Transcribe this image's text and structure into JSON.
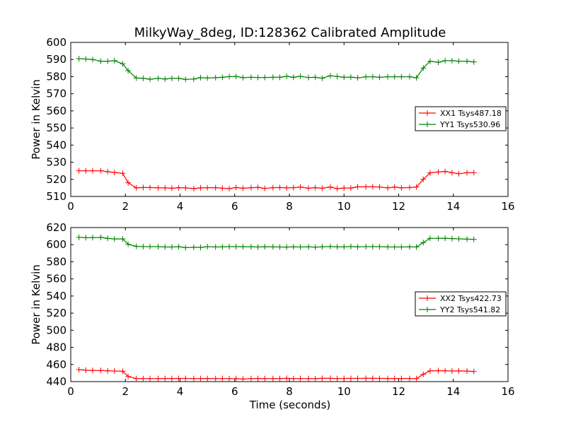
{
  "figure": {
    "title": "MilkyWay_8deg, ID:128362 Calibrated Amplitude",
    "xlabel": "Time (seconds)"
  },
  "colors": {
    "red": "#ff0000",
    "green": "#008000"
  },
  "chart_data": [
    {
      "type": "line",
      "ylabel": "Power in Kelvin",
      "xlim": [
        0,
        16
      ],
      "ylim": [
        510,
        600
      ],
      "xticks": [
        0,
        2,
        4,
        6,
        8,
        10,
        12,
        14,
        16
      ],
      "yticks": [
        510,
        520,
        530,
        540,
        550,
        560,
        570,
        580,
        590,
        600
      ],
      "grid": false,
      "legend": "center-right",
      "x": [
        0.3,
        0.55,
        0.8,
        1.1,
        1.35,
        1.6,
        1.9,
        2.1,
        2.4,
        2.65,
        2.9,
        3.2,
        3.45,
        3.7,
        3.95,
        4.2,
        4.5,
        4.75,
        5.0,
        5.3,
        5.55,
        5.8,
        6.05,
        6.3,
        6.6,
        6.85,
        7.1,
        7.4,
        7.65,
        7.9,
        8.15,
        8.4,
        8.7,
        8.95,
        9.2,
        9.5,
        9.75,
        10.0,
        10.25,
        10.5,
        10.8,
        11.05,
        11.3,
        11.6,
        11.85,
        12.1,
        12.4,
        12.65,
        12.9,
        13.15,
        13.45,
        13.7,
        13.95,
        14.2,
        14.5,
        14.75
      ],
      "series": [
        {
          "name": "XX1 Tsys487.18",
          "color": "red",
          "values": [
            525,
            525,
            525,
            525,
            524.5,
            524,
            523.5,
            518,
            515,
            515.2,
            515.2,
            515,
            515,
            514.8,
            515.1,
            515,
            514.6,
            515,
            515.1,
            515.1,
            514.8,
            514.6,
            515.2,
            514.8,
            515.1,
            515.3,
            514.7,
            515.1,
            515.2,
            515,
            515.1,
            515.5,
            514.8,
            515.1,
            514.8,
            515.5,
            514.6,
            514.9,
            514.9,
            515.6,
            515.6,
            515.6,
            515.5,
            515,
            515.5,
            515,
            515.2,
            515.5,
            520,
            523.8,
            524.3,
            524.6,
            523.9,
            523.3,
            523.9,
            523.9
          ]
        },
        {
          "name": "YY1 Tsys530.96",
          "color": "green",
          "values": [
            590.5,
            590.3,
            590,
            589,
            589,
            589.3,
            587.5,
            583.5,
            579.2,
            579,
            578.5,
            579,
            578.6,
            579,
            579,
            578.4,
            578.6,
            579.4,
            579.2,
            579.4,
            579.6,
            580,
            580.1,
            579.4,
            579.6,
            579.5,
            579.5,
            579.6,
            579.6,
            580.2,
            579.6,
            580.2,
            579.5,
            579.6,
            579.1,
            580.5,
            580.1,
            579.6,
            579.7,
            579.3,
            579.9,
            579.9,
            579.6,
            579.9,
            579.9,
            579.9,
            579.9,
            579.3,
            585,
            589,
            588.4,
            589.3,
            589.3,
            589,
            589,
            588.6
          ]
        }
      ]
    },
    {
      "type": "line",
      "ylabel": "Power in Kelvin",
      "xlim": [
        0,
        16
      ],
      "ylim": [
        440,
        620
      ],
      "xticks": [
        0,
        2,
        4,
        6,
        8,
        10,
        12,
        14,
        16
      ],
      "yticks": [
        440,
        460,
        480,
        500,
        520,
        540,
        560,
        580,
        600,
        620
      ],
      "grid": false,
      "legend": "center-right",
      "x": [
        0.3,
        0.55,
        0.8,
        1.1,
        1.35,
        1.6,
        1.9,
        2.1,
        2.4,
        2.65,
        2.9,
        3.2,
        3.45,
        3.7,
        3.95,
        4.2,
        4.5,
        4.75,
        5.0,
        5.3,
        5.55,
        5.8,
        6.05,
        6.3,
        6.6,
        6.85,
        7.1,
        7.4,
        7.65,
        7.9,
        8.15,
        8.4,
        8.7,
        8.95,
        9.2,
        9.5,
        9.75,
        10.0,
        10.25,
        10.5,
        10.8,
        11.05,
        11.3,
        11.6,
        11.85,
        12.1,
        12.4,
        12.65,
        12.9,
        13.15,
        13.45,
        13.7,
        13.95,
        14.2,
        14.5,
        14.75
      ],
      "series": [
        {
          "name": "XX2 Tsys422.73",
          "color": "red",
          "values": [
            454,
            453.3,
            453,
            453,
            452.6,
            452.4,
            452.1,
            446,
            443.5,
            443.5,
            443.5,
            443.5,
            443.6,
            443.6,
            443.6,
            443.7,
            443.5,
            443.5,
            443.6,
            443.5,
            443.5,
            443.5,
            443.5,
            443,
            443.5,
            443.6,
            443.5,
            443.5,
            443.5,
            443.8,
            443.5,
            443.5,
            443.5,
            443.4,
            443.8,
            443.8,
            443.5,
            443.7,
            443.7,
            443.7,
            443.8,
            443.8,
            443.7,
            443.6,
            443.6,
            443.6,
            443.6,
            443.5,
            448.5,
            452.5,
            452.8,
            452.6,
            452.4,
            452.5,
            452.3,
            451.9
          ]
        },
        {
          "name": "YY2 Tsys541.82",
          "color": "green",
          "values": [
            608.5,
            608.2,
            608.2,
            608.5,
            607.3,
            606.7,
            606.8,
            600.5,
            598,
            597.7,
            597.7,
            597.7,
            597.3,
            597.3,
            597.6,
            596.5,
            597,
            596.8,
            597.7,
            597.3,
            597.5,
            597.7,
            597.7,
            597.6,
            597.6,
            597.3,
            597.6,
            597.5,
            597.3,
            597.2,
            597.5,
            597.3,
            597.5,
            597.1,
            597.5,
            597.8,
            597.5,
            597.5,
            597.8,
            597.4,
            597.7,
            597.7,
            597.7,
            597.4,
            597.3,
            597.3,
            597.5,
            597.3,
            602.5,
            607.4,
            607.4,
            607.5,
            607.1,
            606.8,
            606.5,
            606.2
          ]
        }
      ]
    }
  ]
}
